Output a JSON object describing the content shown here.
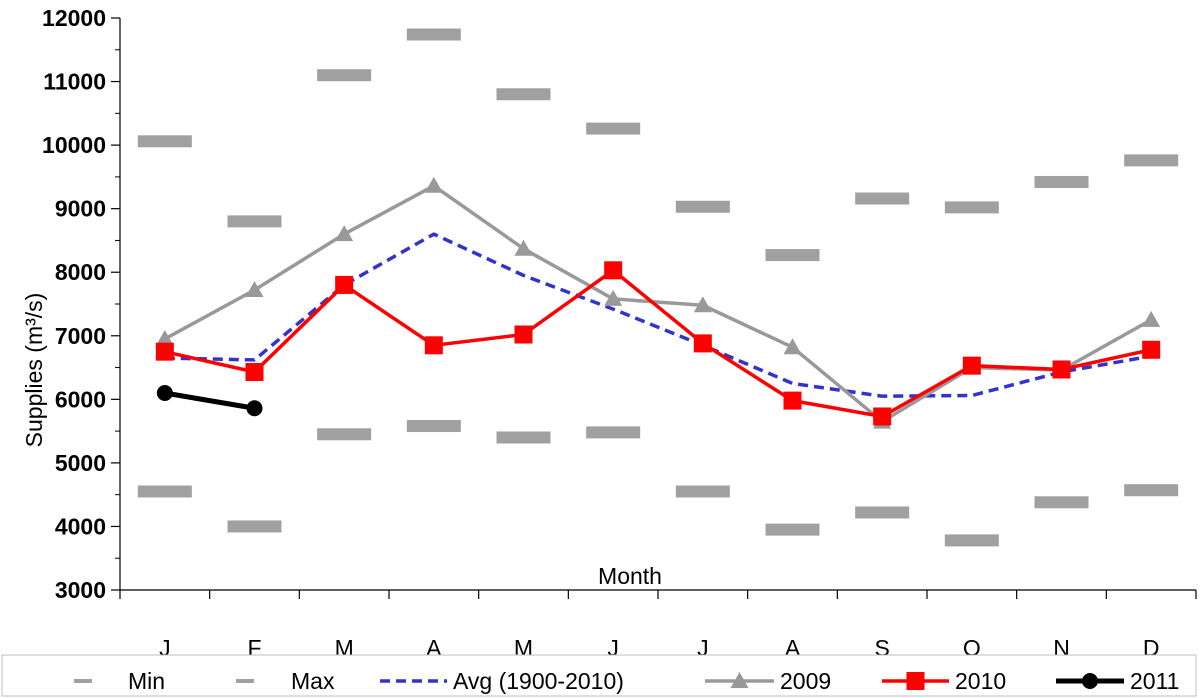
{
  "chart_data": {
    "type": "line",
    "title": "",
    "xlabel": "Month",
    "ylabel": "Supplies (m³/s)",
    "categories": [
      "J",
      "F",
      "M",
      "A",
      "M",
      "J",
      "J",
      "A",
      "S",
      "O",
      "N",
      "D"
    ],
    "ylim": [
      3000,
      12000
    ],
    "yticks": [
      3000,
      4000,
      5000,
      6000,
      7000,
      8000,
      9000,
      10000,
      11000,
      12000
    ],
    "grid": false,
    "legend_position": "bottom",
    "series": [
      {
        "name": "Min",
        "style": "bar-marker",
        "color": "#a0a0a0",
        "values": [
          4550,
          4000,
          5450,
          5580,
          5400,
          5480,
          4550,
          3950,
          4220,
          3780,
          4380,
          4570
        ]
      },
      {
        "name": "Max",
        "style": "bar-marker",
        "color": "#a0a0a0",
        "values": [
          10060,
          8800,
          11100,
          11740,
          10800,
          10260,
          9030,
          8270,
          9160,
          9020,
          9420,
          9760
        ]
      },
      {
        "name": "Avg (1900-2010)",
        "style": "dashed",
        "color": "#3333cc",
        "values": [
          6650,
          6620,
          7800,
          8600,
          7950,
          7420,
          6850,
          6250,
          6050,
          6060,
          6430,
          6680
        ]
      },
      {
        "name": "2009",
        "style": "line-triangle",
        "color": "#999999",
        "values": [
          6950,
          7720,
          8600,
          9360,
          8370,
          7580,
          7480,
          6820,
          5650,
          6500,
          6460,
          7250
        ]
      },
      {
        "name": "2010",
        "style": "line-square",
        "color": "#ff0000",
        "values": [
          6750,
          6430,
          7800,
          6850,
          7020,
          8030,
          6880,
          5980,
          5730,
          6530,
          6470,
          6780
        ]
      },
      {
        "name": "2011",
        "style": "line-circle",
        "color": "#000000",
        "values": [
          6100,
          5860,
          null,
          null,
          null,
          null,
          null,
          null,
          null,
          null,
          null,
          null
        ]
      }
    ]
  }
}
